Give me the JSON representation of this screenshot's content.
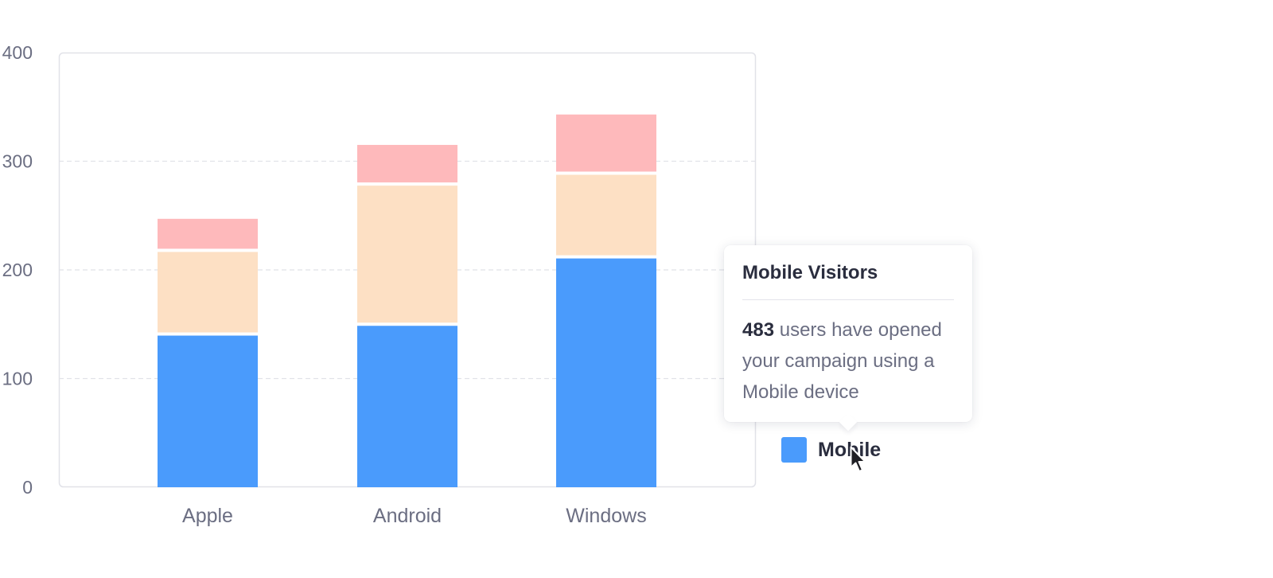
{
  "chart_data": {
    "type": "bar",
    "stacked": true,
    "categories": [
      "Apple",
      "Android",
      "Windows"
    ],
    "series": [
      {
        "values": [
          141,
          150,
          212
        ],
        "color": "#4a9bfc"
      },
      {
        "values": [
          77,
          129,
          77
        ],
        "color": "#fde0c4"
      },
      {
        "values": [
          29,
          36,
          54
        ],
        "color": "#feb9bb"
      }
    ],
    "yticks": [
      0,
      100,
      200,
      300,
      400
    ],
    "ylim": [
      0,
      400
    ],
    "grid": true
  },
  "tooltip": {
    "title": "Mobile Visitors",
    "value": "483",
    "line1": " users have opened",
    "line2": "your campaign using a",
    "line3": "Mobile device"
  },
  "legend": {
    "label": "Mobile",
    "color": "#4a9bfc"
  },
  "colors": {
    "axis_text": "#6b6e82",
    "grid": "#e1e2e8",
    "frame": "#e1e2e8"
  },
  "icons": {
    "cursor": "arrow-cursor-icon"
  }
}
